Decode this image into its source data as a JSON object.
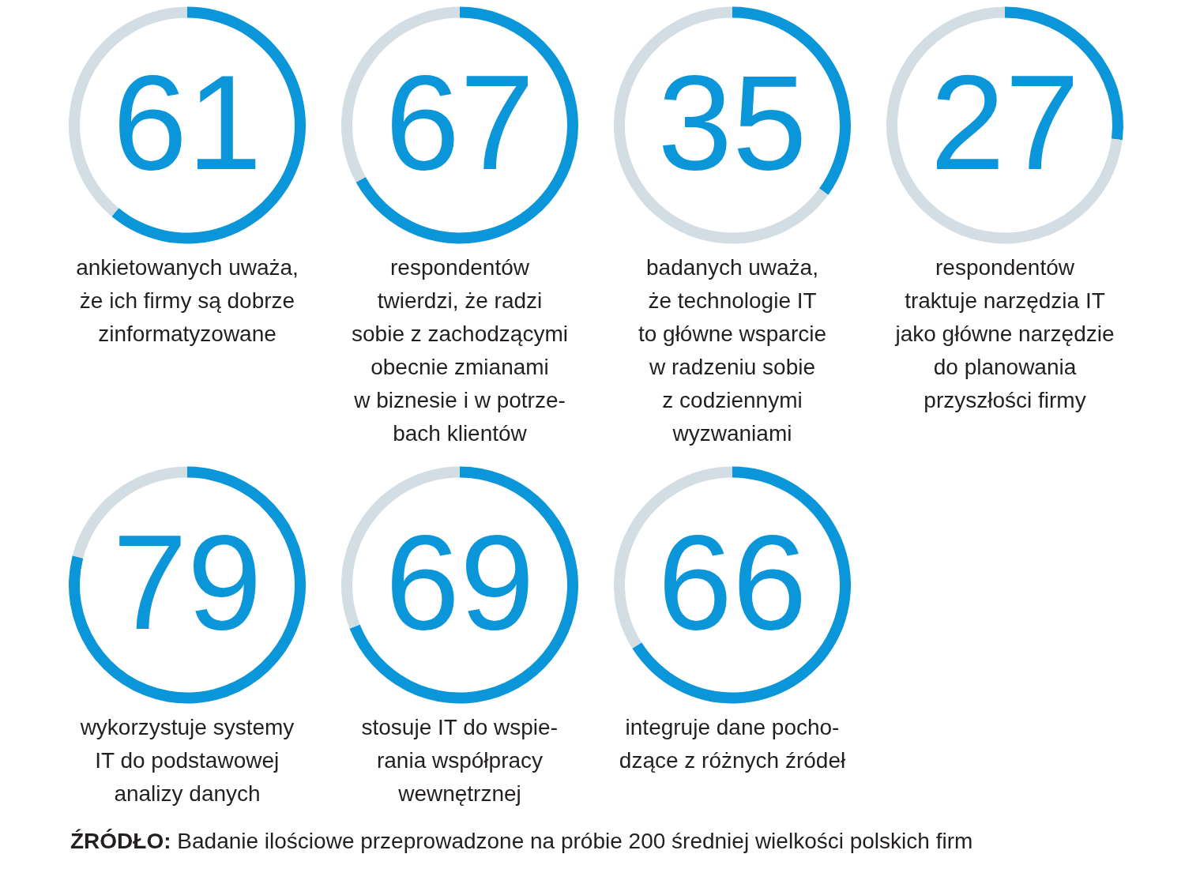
{
  "chart_data": [
    {
      "type": "donut",
      "categories": [
        null,
        null
      ],
      "values": [
        61,
        39
      ],
      "colors": [
        "#0a96d8",
        "#d3dde4"
      ],
      "value_labels": [
        "61",
        null
      ],
      "title": "ankietowanych uważa,\nże ich firmy są dobrze\nzinformatyzowane"
    },
    {
      "type": "donut",
      "categories": [
        null,
        null
      ],
      "values": [
        67,
        33
      ],
      "colors": [
        "#0a96d8",
        "#d3dde4"
      ],
      "value_labels": [
        "67",
        null
      ],
      "title": "respondentów\ntwierdzi, że radzi\nsobie z zachodzącymi\nobecnie zmianami\nw biznesie i w potrze-\nbach klientów"
    },
    {
      "type": "donut",
      "categories": [
        null,
        null
      ],
      "values": [
        35,
        65
      ],
      "colors": [
        "#0a96d8",
        "#d3dde4"
      ],
      "value_labels": [
        "35",
        null
      ],
      "title": "badanych uważa,\nże technologie IT\nto główne wsparcie\nw radzeniu sobie\nz codziennymi\nwyzwaniami"
    },
    {
      "type": "donut",
      "categories": [
        null,
        null
      ],
      "values": [
        27,
        73
      ],
      "colors": [
        "#0a96d8",
        "#d3dde4"
      ],
      "value_labels": [
        "27",
        null
      ],
      "title": "respondentów\ntraktuje narzędzia IT\njako główne narzędzie\ndo planowania\nprzyszłości firmy"
    },
    {
      "type": "donut",
      "categories": [
        null,
        null
      ],
      "values": [
        79,
        21
      ],
      "colors": [
        "#0a96d8",
        "#d3dde4"
      ],
      "value_labels": [
        "79",
        null
      ],
      "title": "wykorzystuje systemy\nIT do podstawowej\nanalizy danych"
    },
    {
      "type": "donut",
      "categories": [
        null,
        null
      ],
      "values": [
        69,
        31
      ],
      "colors": [
        "#0a96d8",
        "#d3dde4"
      ],
      "value_labels": [
        "69",
        null
      ],
      "title": "stosuje IT do wspie-\nrania współpracy\nwewnętrznej"
    },
    {
      "type": "donut",
      "categories": [
        null,
        null
      ],
      "values": [
        66,
        34
      ],
      "colors": [
        "#0a96d8",
        "#d3dde4"
      ],
      "value_labels": [
        "66",
        null
      ],
      "title": "integruje dane pocho-\ndzące z różnych źródeł",
      "annotations": [
        "ŹRÓDŁO: Badanie ilościowe przeprowadzone na próbie 200 średniej wielkości polskich firm"
      ]
    }
  ]
}
